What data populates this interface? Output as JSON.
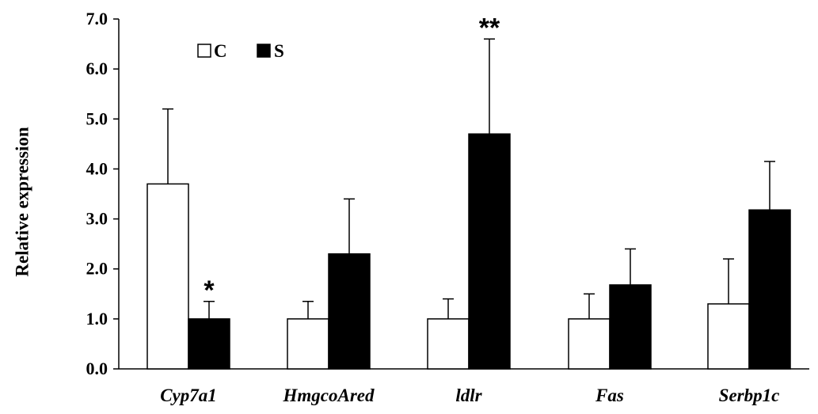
{
  "chart_data": {
    "type": "bar",
    "title": "",
    "xlabel": "",
    "ylabel": "Relative expression",
    "ylim": [
      0,
      7
    ],
    "yticks": [
      "0.0",
      "1.0",
      "2.0",
      "3.0",
      "4.0",
      "5.0",
      "6.0",
      "7.0"
    ],
    "categories": [
      "Cyp7a1",
      "HmgcoAred",
      "ldlr",
      "Fas",
      "Serbp1c"
    ],
    "series": [
      {
        "name": "C",
        "color": "#ffffff",
        "values": [
          3.7,
          1.0,
          1.0,
          1.0,
          1.3
        ],
        "errors": [
          1.5,
          0.35,
          0.4,
          0.5,
          0.9
        ]
      },
      {
        "name": "S",
        "color": "#000000",
        "values": [
          1.0,
          2.3,
          4.7,
          1.68,
          3.18
        ],
        "errors": [
          0.35,
          1.1,
          1.9,
          0.72,
          0.97
        ]
      }
    ],
    "significance": [
      {
        "category": "Cyp7a1",
        "series": "S",
        "label": "*"
      },
      {
        "category": "ldlr",
        "series": "S",
        "label": "**"
      }
    ],
    "legend_position": "top-left",
    "grid": false
  }
}
